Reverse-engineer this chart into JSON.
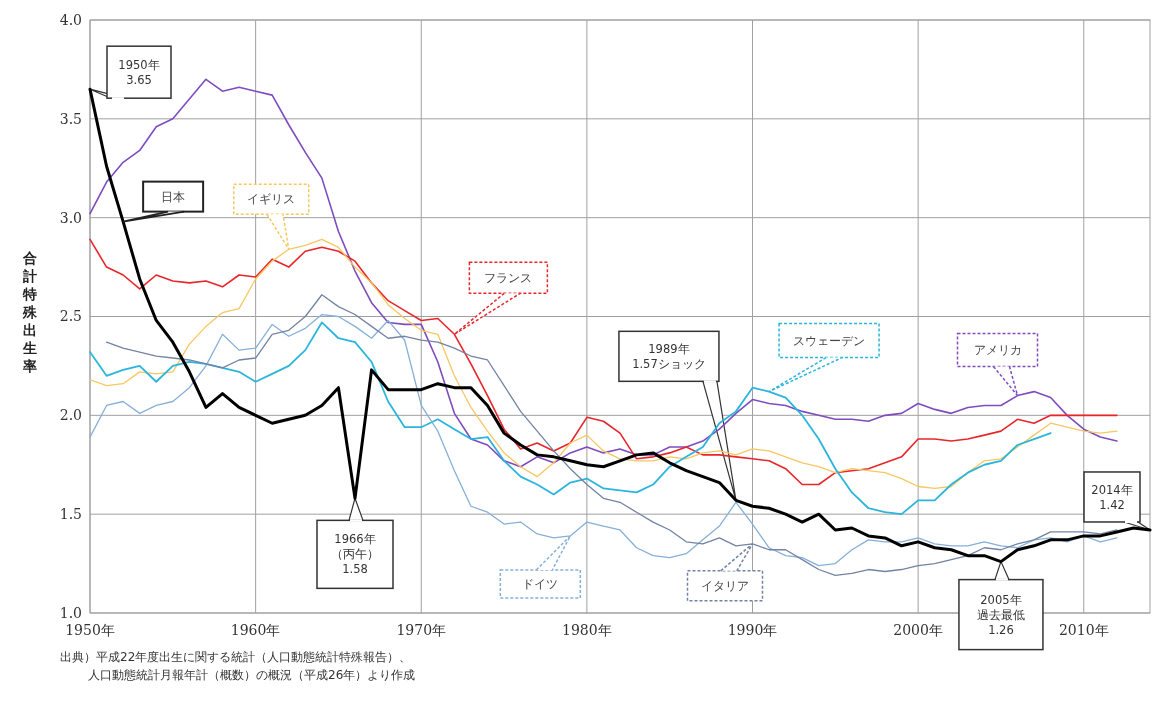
{
  "chart_data": {
    "type": "line",
    "ylabel": "合計特殊出生率",
    "xlim": [
      1950,
      2014
    ],
    "ylim": [
      1,
      4
    ],
    "xticks": [
      {
        "value": 1950,
        "label": "1950年"
      },
      {
        "value": 1960,
        "label": "1960年"
      },
      {
        "value": 1970,
        "label": "1970年"
      },
      {
        "value": 1980,
        "label": "1980年"
      },
      {
        "value": 1990,
        "label": "1990年"
      },
      {
        "value": 2000,
        "label": "2000年"
      },
      {
        "value": 2010,
        "label": "2010年"
      }
    ],
    "yticks": [
      {
        "value": 1,
        "label": "1.0"
      },
      1.5,
      {
        "value": 2,
        "label": "2.0"
      },
      2.5,
      {
        "value": 3,
        "label": "3.0"
      },
      3.5,
      {
        "value": 4,
        "label": "4.0"
      }
    ],
    "grid": true,
    "marker": "none",
    "line_style": "solid",
    "x": [
      1950,
      1951,
      1952,
      1953,
      1954,
      1955,
      1956,
      1957,
      1958,
      1959,
      1960,
      1961,
      1962,
      1963,
      1964,
      1965,
      1966,
      1967,
      1968,
      1969,
      1970,
      1971,
      1972,
      1973,
      1974,
      1975,
      1976,
      1977,
      1978,
      1979,
      1980,
      1981,
      1982,
      1983,
      1984,
      1985,
      1986,
      1987,
      1988,
      1989,
      1990,
      1991,
      1992,
      1993,
      1994,
      1995,
      1996,
      1997,
      1998,
      1999,
      2000,
      2001,
      2002,
      2003,
      2004,
      2005,
      2006,
      2007,
      2008,
      2009,
      2010,
      2011,
      2012,
      2013,
      2014
    ],
    "series": [
      {
        "name": "日本",
        "color": "#000000",
        "values": [
          3.65,
          3.26,
          2.98,
          2.69,
          2.48,
          2.37,
          2.22,
          2.04,
          2.11,
          2.04,
          2.0,
          1.96,
          1.98,
          2.0,
          2.05,
          2.14,
          1.58,
          2.23,
          2.13,
          2.13,
          2.13,
          2.16,
          2.14,
          2.14,
          2.05,
          1.91,
          1.85,
          1.8,
          1.79,
          1.77,
          1.75,
          1.74,
          1.77,
          1.8,
          1.81,
          1.76,
          1.72,
          1.69,
          1.66,
          1.57,
          1.54,
          1.53,
          1.5,
          1.46,
          1.5,
          1.42,
          1.43,
          1.39,
          1.38,
          1.34,
          1.36,
          1.33,
          1.32,
          1.29,
          1.29,
          1.26,
          1.32,
          1.34,
          1.37,
          1.37,
          1.39,
          1.39,
          1.41,
          1.43,
          1.42
        ]
      },
      {
        "name": "アメリカ",
        "color": "#7e4cbf",
        "values": [
          3.02,
          3.18,
          3.28,
          3.34,
          3.46,
          3.5,
          3.6,
          3.7,
          3.64,
          3.66,
          3.64,
          3.62,
          3.47,
          3.33,
          3.2,
          2.93,
          2.73,
          2.57,
          2.47,
          2.46,
          2.46,
          2.27,
          2.01,
          1.88,
          1.85,
          1.77,
          1.74,
          1.79,
          1.76,
          1.81,
          1.84,
          1.81,
          1.83,
          1.8,
          1.8,
          1.84,
          1.84,
          1.87,
          1.93,
          2.01,
          2.08,
          2.06,
          2.05,
          2.02,
          2.0,
          1.98,
          1.98,
          1.97,
          2.0,
          2.01,
          2.06,
          2.03,
          2.01,
          2.04,
          2.05,
          2.05,
          2.1,
          2.12,
          2.09,
          2.0,
          1.93,
          1.89,
          1.87,
          null,
          null
        ]
      },
      {
        "name": "フランス",
        "color": "#e8262a",
        "values": [
          2.89,
          2.75,
          2.71,
          2.64,
          2.71,
          2.68,
          2.67,
          2.68,
          2.65,
          2.71,
          2.7,
          2.79,
          2.75,
          2.83,
          2.85,
          2.83,
          2.78,
          2.67,
          2.58,
          2.53,
          2.48,
          2.49,
          2.41,
          2.26,
          2.1,
          1.93,
          1.83,
          1.86,
          1.82,
          1.86,
          1.99,
          1.97,
          1.91,
          1.78,
          1.79,
          1.81,
          1.84,
          1.8,
          1.8,
          1.79,
          1.78,
          1.77,
          1.73,
          1.65,
          1.65,
          1.71,
          1.72,
          1.73,
          1.76,
          1.79,
          1.88,
          1.88,
          1.87,
          1.88,
          1.9,
          1.92,
          1.98,
          1.96,
          2.0,
          2.0,
          2.0,
          2.0,
          2.0,
          null,
          null
        ]
      },
      {
        "name": "イギリス",
        "color": "#f7c760",
        "values": [
          2.18,
          2.15,
          2.16,
          2.22,
          2.21,
          2.22,
          2.36,
          2.45,
          2.52,
          2.54,
          2.69,
          2.78,
          2.84,
          2.86,
          2.89,
          2.85,
          2.75,
          2.67,
          2.56,
          2.49,
          2.43,
          2.41,
          2.2,
          2.04,
          1.92,
          1.81,
          1.74,
          1.69,
          1.76,
          1.86,
          1.9,
          1.82,
          1.78,
          1.77,
          1.77,
          1.79,
          1.78,
          1.81,
          1.82,
          1.8,
          1.83,
          1.82,
          1.79,
          1.76,
          1.74,
          1.71,
          1.73,
          1.72,
          1.71,
          1.68,
          1.64,
          1.63,
          1.64,
          1.71,
          1.77,
          1.78,
          1.84,
          1.9,
          1.96,
          1.94,
          1.92,
          1.91,
          1.92,
          null,
          null
        ]
      },
      {
        "name": "スウェーデン",
        "color": "#2bb5dc",
        "values": [
          2.32,
          2.2,
          2.23,
          2.25,
          2.17,
          2.25,
          2.27,
          2.26,
          2.24,
          2.22,
          2.17,
          2.21,
          2.25,
          2.33,
          2.47,
          2.39,
          2.37,
          2.27,
          2.07,
          1.94,
          1.94,
          1.98,
          1.93,
          1.88,
          1.89,
          1.77,
          1.69,
          1.65,
          1.6,
          1.66,
          1.68,
          1.63,
          1.62,
          1.61,
          1.65,
          1.74,
          1.79,
          1.84,
          1.96,
          2.02,
          2.14,
          2.12,
          2.09,
          2.0,
          1.88,
          1.73,
          1.61,
          1.53,
          1.51,
          1.5,
          1.57,
          1.57,
          1.65,
          1.71,
          1.75,
          1.77,
          1.85,
          1.88,
          1.91,
          null,
          null,
          null,
          null,
          null,
          null
        ]
      },
      {
        "name": "ドイツ",
        "color": "#86b0d8",
        "values": [
          1.89,
          2.05,
          2.07,
          2.01,
          2.05,
          2.07,
          2.14,
          2.25,
          2.41,
          2.33,
          2.34,
          2.46,
          2.4,
          2.44,
          2.51,
          2.5,
          2.45,
          2.39,
          2.48,
          2.38,
          2.05,
          1.92,
          1.72,
          1.54,
          1.51,
          1.45,
          1.46,
          1.4,
          1.38,
          1.39,
          1.46,
          1.44,
          1.42,
          1.33,
          1.29,
          1.28,
          1.3,
          1.37,
          1.44,
          1.56,
          1.45,
          1.33,
          1.29,
          1.28,
          1.24,
          1.25,
          1.32,
          1.37,
          1.36,
          1.36,
          1.38,
          1.35,
          1.34,
          1.34,
          1.36,
          1.34,
          1.33,
          1.37,
          1.38,
          1.36,
          1.39,
          1.36,
          1.38,
          null,
          null
        ]
      },
      {
        "name": "イタリア",
        "color": "#7383a3",
        "values": [
          null,
          2.37,
          2.34,
          2.32,
          2.3,
          2.29,
          2.28,
          2.26,
          2.24,
          2.28,
          2.29,
          2.41,
          2.43,
          2.5,
          2.61,
          2.55,
          2.51,
          2.45,
          2.39,
          2.4,
          2.38,
          2.37,
          2.34,
          2.3,
          2.28,
          2.15,
          2.02,
          1.92,
          1.82,
          1.73,
          1.65,
          1.58,
          1.56,
          1.51,
          1.46,
          1.42,
          1.36,
          1.35,
          1.38,
          1.34,
          1.35,
          1.32,
          1.32,
          1.27,
          1.22,
          1.19,
          1.2,
          1.22,
          1.21,
          1.22,
          1.24,
          1.25,
          1.27,
          1.29,
          1.33,
          1.32,
          1.35,
          1.37,
          1.41,
          1.41,
          1.41,
          1.4,
          1.42,
          null,
          null
        ]
      }
    ],
    "annotations": [
      {
        "text": "1950年3.65",
        "x": 1950,
        "y": 3.65
      },
      {
        "text": "1966年（丙午）1.58",
        "x": 1966,
        "y": 1.58
      },
      {
        "text": "1989年1.57ショック",
        "x": 1989,
        "y": 1.57
      },
      {
        "text": "2005年過去最低1.26",
        "x": 2005,
        "y": 1.26
      },
      {
        "text": "2014年1.42",
        "x": 2014,
        "y": 1.42
      },
      "出典）平成22年度出生に関する統計（人口動態統計特殊報告）、人口動態統計月報年計（概数）の概況（平成26年）より作成"
    ]
  }
}
